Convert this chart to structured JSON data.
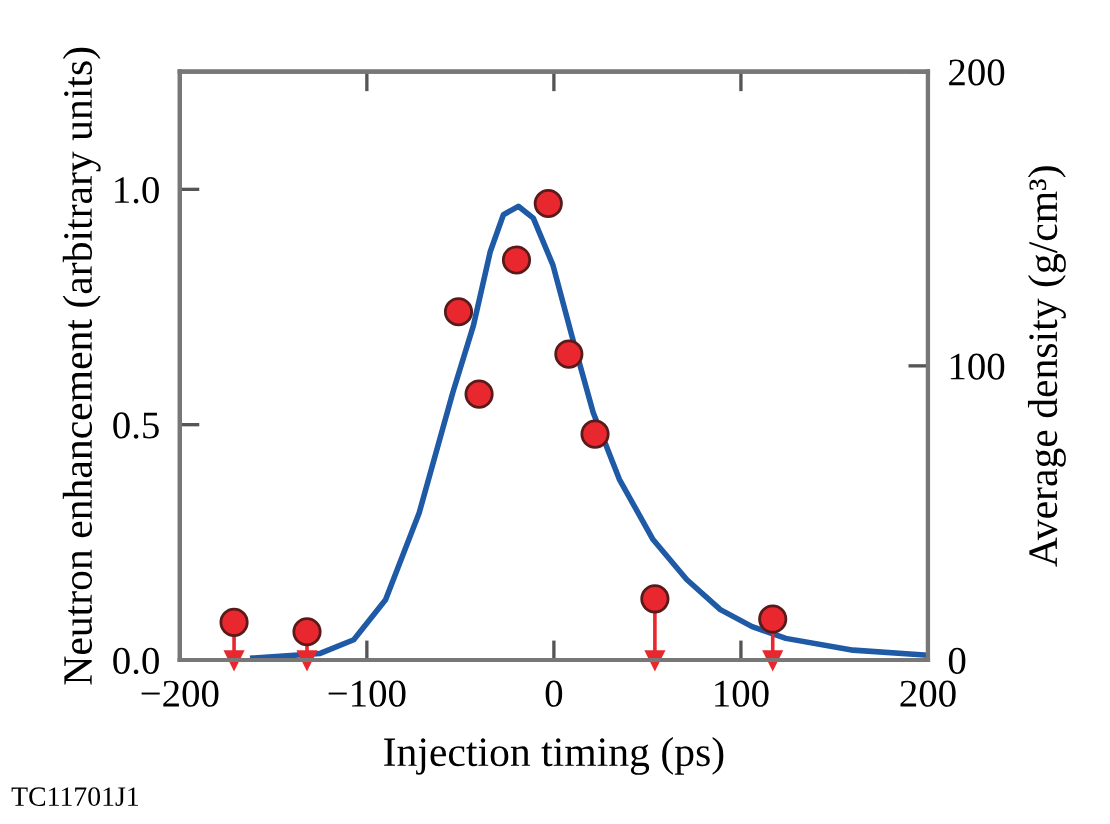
{
  "chart_data": {
    "type": "scatter",
    "xlabel": "Injection timing (ps)",
    "ylabel": "Neutron enhancement (arbitrary units)",
    "y2label": "Average density (g/cm³)",
    "annotations": [
      "TC11701J1"
    ],
    "xlim": [
      -200,
      200
    ],
    "xticks": [
      {
        "value": -200,
        "label": "−200"
      },
      {
        "value": -100,
        "label": "−100"
      },
      0,
      100,
      200
    ],
    "ylim": [
      0,
      1.25
    ],
    "yticks": [
      {
        "value": 0,
        "label": "0.0"
      },
      0.5,
      {
        "value": 1,
        "label": "1.0"
      }
    ],
    "y2lim": [
      0,
      200
    ],
    "y2ticks": [
      0,
      100,
      200
    ],
    "grid": false,
    "series": [
      {
        "type": "line",
        "color": "#1f5aa6",
        "marker": "none",
        "line_style": "solid",
        "x": [
          -161,
          -125,
          -107,
          -90,
          -72,
          -54,
          -43,
          -34,
          -27,
          -19,
          -11,
          -0.5,
          10,
          21,
          35,
          53,
          71,
          89,
          106,
          124,
          160,
          200
        ],
        "values": [
          0.004,
          0.014,
          0.043,
          0.128,
          0.313,
          0.569,
          0.711,
          0.868,
          0.946,
          0.964,
          0.939,
          0.839,
          0.683,
          0.526,
          0.384,
          0.256,
          0.171,
          0.107,
          0.071,
          0.046,
          0.021,
          0.01
        ]
      },
      {
        "color": "#e8282e",
        "marker": "circle",
        "x": [
          -171,
          -132,
          -51,
          -40,
          -20,
          -3,
          8,
          22,
          54,
          117
        ],
        "values": [
          0.08,
          0.06,
          0.74,
          0.565,
          0.85,
          0.97,
          0.65,
          0.48,
          0.13,
          0.087
        ],
        "errors": [
          [
            0,
            0.08
          ],
          [
            0,
            0.06
          ],
          null,
          null,
          null,
          null,
          null,
          null,
          [
            0,
            0.13
          ],
          [
            0,
            0.087
          ]
        ]
      }
    ]
  }
}
